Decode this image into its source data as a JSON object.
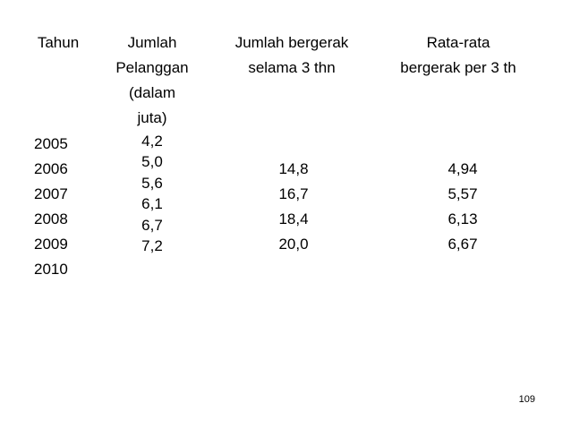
{
  "table": {
    "headers": [
      [
        "Tahun"
      ],
      [
        "Jumlah",
        "Pelanggan",
        "(dalam",
        "juta)"
      ],
      [
        "Jumlah bergerak",
        "selama 3 thn"
      ],
      [
        "Rata-rata",
        "bergerak per 3 th"
      ]
    ],
    "years": [
      "2005",
      "2006",
      "2007",
      "2008",
      "2009",
      "2010"
    ],
    "pelanggan": [
      "4,2",
      "5,0",
      "5,6",
      "6,1",
      "6,7",
      "7,2"
    ],
    "jumlah_bergerak": [
      "14,8",
      "16,7",
      "18,4",
      "20,0"
    ],
    "rata_rata": [
      "4,94",
      "5,57",
      "6,13",
      "6,67"
    ]
  },
  "page_number": "109"
}
